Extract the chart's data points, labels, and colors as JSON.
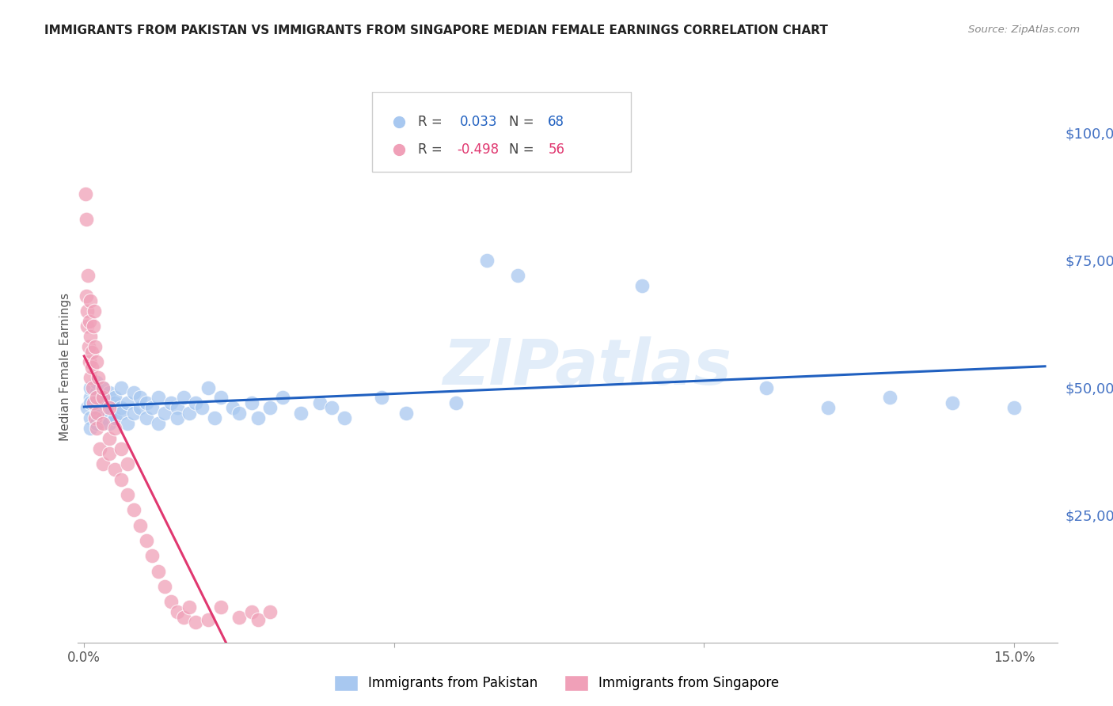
{
  "title": "IMMIGRANTS FROM PAKISTAN VS IMMIGRANTS FROM SINGAPORE MEDIAN FEMALE EARNINGS CORRELATION CHART",
  "source": "Source: ZipAtlas.com",
  "ylabel": "Median Female Earnings",
  "ytick_labels": [
    "$25,000",
    "$50,000",
    "$75,000",
    "$100,000"
  ],
  "ytick_values": [
    25000,
    50000,
    75000,
    100000
  ],
  "ymin": 0,
  "ymax": 108000,
  "xmin": -0.001,
  "xmax": 0.157,
  "watermark": "ZIPatlas",
  "pakistan_color": "#A8C8F0",
  "singapore_color": "#F0A0B8",
  "pakistan_line_color": "#2060C0",
  "singapore_line_color": "#E03870",
  "pakistan_x": [
    0.0005,
    0.001,
    0.001,
    0.001,
    0.001,
    0.001,
    0.002,
    0.002,
    0.002,
    0.002,
    0.002,
    0.003,
    0.003,
    0.003,
    0.003,
    0.004,
    0.004,
    0.004,
    0.004,
    0.005,
    0.005,
    0.005,
    0.006,
    0.006,
    0.006,
    0.007,
    0.007,
    0.008,
    0.008,
    0.009,
    0.009,
    0.01,
    0.01,
    0.011,
    0.012,
    0.012,
    0.013,
    0.014,
    0.015,
    0.015,
    0.016,
    0.017,
    0.018,
    0.019,
    0.02,
    0.021,
    0.022,
    0.024,
    0.025,
    0.027,
    0.028,
    0.03,
    0.032,
    0.035,
    0.038,
    0.04,
    0.042,
    0.048,
    0.052,
    0.06,
    0.065,
    0.07,
    0.09,
    0.11,
    0.12,
    0.13,
    0.14,
    0.15
  ],
  "pakistan_y": [
    46000,
    48000,
    44000,
    50000,
    42000,
    47000,
    49000,
    45000,
    43000,
    51000,
    46000,
    48000,
    44000,
    47000,
    50000,
    45000,
    43000,
    49000,
    46000,
    47000,
    44000,
    48000,
    46000,
    45000,
    50000,
    47000,
    43000,
    49000,
    45000,
    46000,
    48000,
    44000,
    47000,
    46000,
    43000,
    48000,
    45000,
    47000,
    46000,
    44000,
    48000,
    45000,
    47000,
    46000,
    50000,
    44000,
    48000,
    46000,
    45000,
    47000,
    44000,
    46000,
    48000,
    45000,
    47000,
    46000,
    44000,
    48000,
    45000,
    47000,
    75000,
    72000,
    70000,
    50000,
    46000,
    48000,
    47000,
    46000
  ],
  "singapore_x": [
    0.0002,
    0.0003,
    0.0004,
    0.0005,
    0.0005,
    0.0006,
    0.0007,
    0.0008,
    0.0009,
    0.001,
    0.001,
    0.001,
    0.0012,
    0.0013,
    0.0014,
    0.0015,
    0.0015,
    0.0016,
    0.0017,
    0.0018,
    0.002,
    0.002,
    0.002,
    0.0022,
    0.0023,
    0.0025,
    0.003,
    0.003,
    0.003,
    0.003,
    0.004,
    0.004,
    0.004,
    0.005,
    0.005,
    0.006,
    0.006,
    0.007,
    0.007,
    0.008,
    0.009,
    0.01,
    0.011,
    0.012,
    0.013,
    0.014,
    0.015,
    0.016,
    0.017,
    0.018,
    0.02,
    0.022,
    0.025,
    0.027,
    0.028,
    0.03
  ],
  "singapore_y": [
    88000,
    83000,
    68000,
    65000,
    62000,
    72000,
    58000,
    55000,
    63000,
    52000,
    67000,
    60000,
    57000,
    54000,
    50000,
    62000,
    47000,
    65000,
    44000,
    58000,
    48000,
    42000,
    55000,
    45000,
    52000,
    38000,
    48000,
    43000,
    35000,
    50000,
    40000,
    37000,
    46000,
    34000,
    42000,
    32000,
    38000,
    29000,
    35000,
    26000,
    23000,
    20000,
    17000,
    14000,
    11000,
    8000,
    6000,
    5000,
    7000,
    4000,
    4500,
    7000,
    5000,
    6000,
    4500,
    6000
  ]
}
